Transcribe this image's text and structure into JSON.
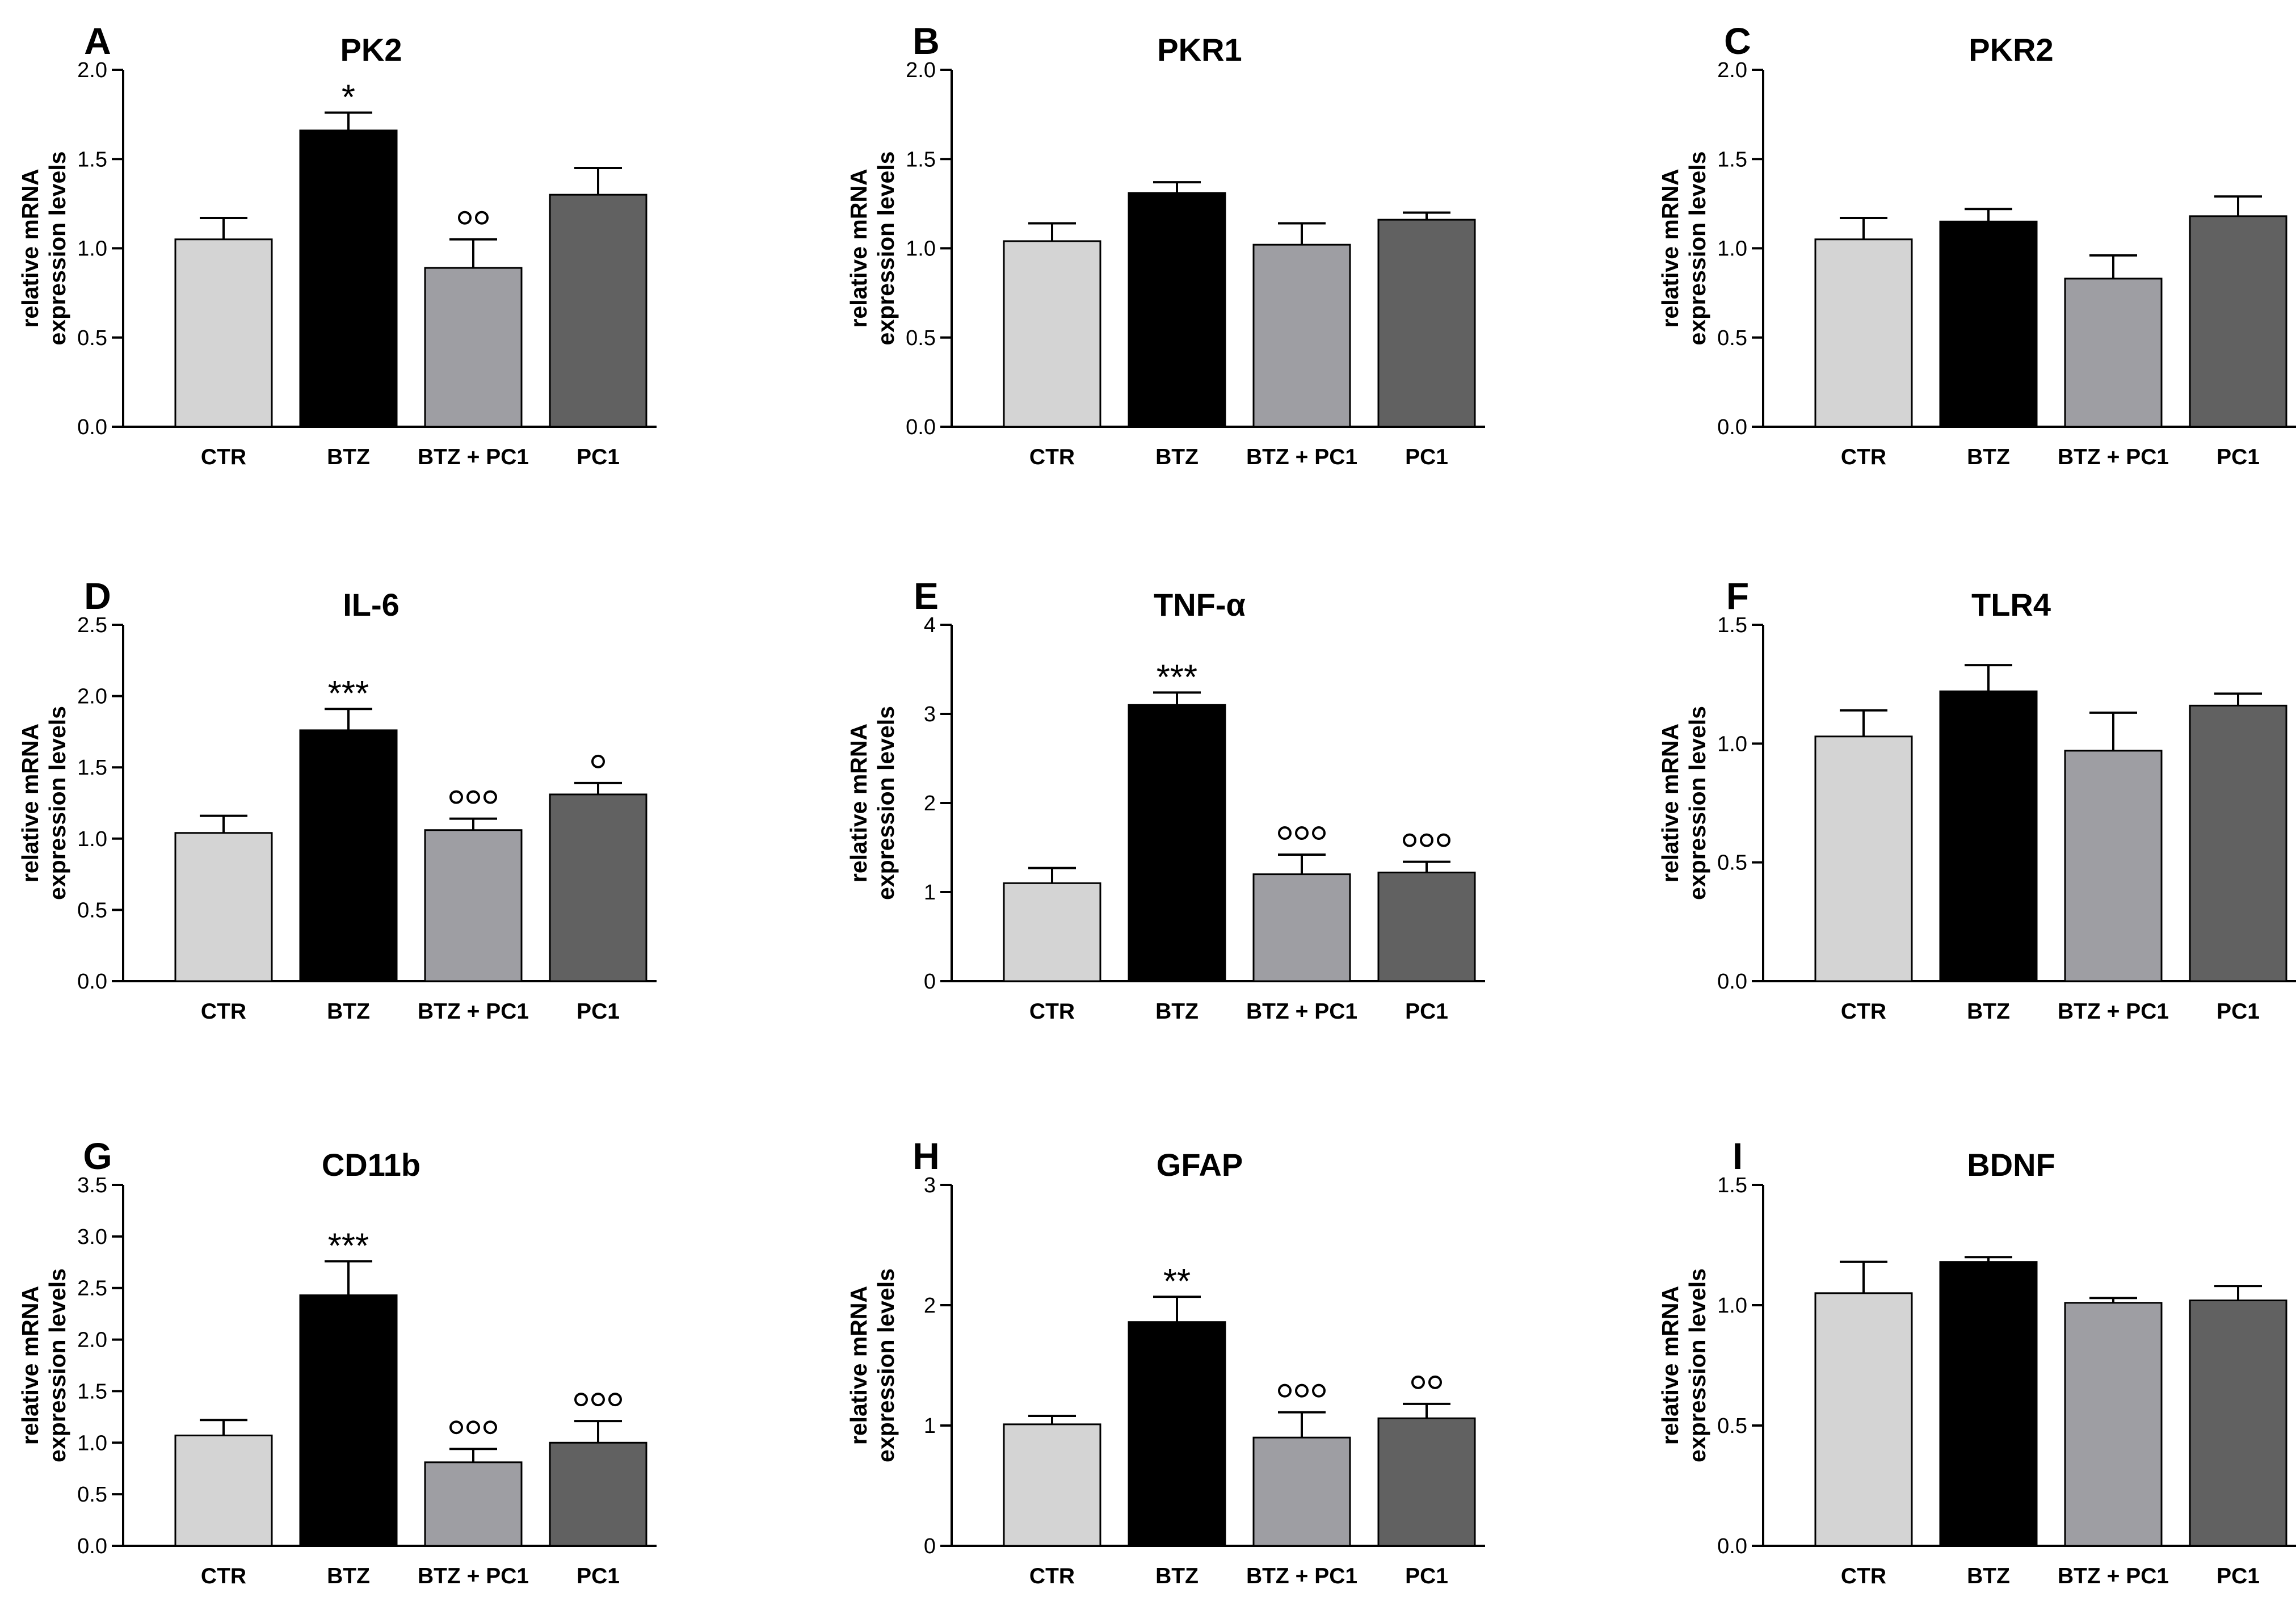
{
  "figure": {
    "ylabel_lines": [
      "relative mRNA",
      "expression levels"
    ]
  },
  "chart_data": [
    {
      "panel": "A",
      "title": "PK2",
      "type": "bar",
      "categories": [
        "CTR",
        "BTZ",
        "BTZ + PC1",
        "PC1"
      ],
      "values": [
        1.05,
        1.66,
        0.89,
        1.3
      ],
      "errors": [
        0.12,
        0.1,
        0.16,
        0.15
      ],
      "colors": [
        "#d4d4d4",
        "#000000",
        "#9e9ea3",
        "#616161"
      ],
      "ylim": [
        0,
        2.0
      ],
      "yticks": [
        0,
        0.5,
        1.0,
        1.5,
        2.0
      ],
      "tick_decimals": 1,
      "ylabel": "relative mRNA expression levels",
      "significance": [
        {
          "bar": 1,
          "symbol": "*"
        },
        {
          "bar": 2,
          "symbol": "°°"
        }
      ]
    },
    {
      "panel": "B",
      "title": "PKR1",
      "type": "bar",
      "categories": [
        "CTR",
        "BTZ",
        "BTZ + PC1",
        "PC1"
      ],
      "values": [
        1.04,
        1.31,
        1.02,
        1.16
      ],
      "errors": [
        0.1,
        0.06,
        0.12,
        0.04
      ],
      "colors": [
        "#d4d4d4",
        "#000000",
        "#9e9ea3",
        "#616161"
      ],
      "ylim": [
        0,
        2.0
      ],
      "yticks": [
        0,
        0.5,
        1.0,
        1.5,
        2.0
      ],
      "tick_decimals": 1,
      "ylabel": "relative mRNA expression levels",
      "significance": []
    },
    {
      "panel": "C",
      "title": "PKR2",
      "type": "bar",
      "categories": [
        "CTR",
        "BTZ",
        "BTZ + PC1",
        "PC1"
      ],
      "values": [
        1.05,
        1.15,
        0.83,
        1.18
      ],
      "errors": [
        0.12,
        0.07,
        0.13,
        0.11
      ],
      "colors": [
        "#d4d4d4",
        "#000000",
        "#9e9ea3",
        "#616161"
      ],
      "ylim": [
        0,
        2.0
      ],
      "yticks": [
        0,
        0.5,
        1.0,
        1.5,
        2.0
      ],
      "tick_decimals": 1,
      "ylabel": "relative mRNA expression levels",
      "significance": []
    },
    {
      "panel": "D",
      "title": "IL-6",
      "type": "bar",
      "categories": [
        "CTR",
        "BTZ",
        "BTZ + PC1",
        "PC1"
      ],
      "values": [
        1.04,
        1.76,
        1.06,
        1.31
      ],
      "errors": [
        0.12,
        0.15,
        0.08,
        0.08
      ],
      "colors": [
        "#d4d4d4",
        "#000000",
        "#9e9ea3",
        "#616161"
      ],
      "ylim": [
        0,
        2.5
      ],
      "yticks": [
        0,
        0.5,
        1.0,
        1.5,
        2.0,
        2.5
      ],
      "tick_decimals": 1,
      "ylabel": "relative mRNA expression levels",
      "significance": [
        {
          "bar": 1,
          "symbol": "***"
        },
        {
          "bar": 2,
          "symbol": "°°°"
        },
        {
          "bar": 3,
          "symbol": "°"
        }
      ]
    },
    {
      "panel": "E",
      "title": "TNF-α",
      "type": "bar",
      "categories": [
        "CTR",
        "BTZ",
        "BTZ + PC1",
        "PC1"
      ],
      "values": [
        1.1,
        3.1,
        1.2,
        1.22
      ],
      "errors": [
        0.17,
        0.14,
        0.22,
        0.12
      ],
      "colors": [
        "#d4d4d4",
        "#000000",
        "#9e9ea3",
        "#616161"
      ],
      "ylim": [
        0,
        4
      ],
      "yticks": [
        0,
        1,
        2,
        3,
        4
      ],
      "tick_decimals": 0,
      "ylabel": "relative mRNA expression levels",
      "significance": [
        {
          "bar": 1,
          "symbol": "***"
        },
        {
          "bar": 2,
          "symbol": "°°°"
        },
        {
          "bar": 3,
          "symbol": "°°°"
        }
      ]
    },
    {
      "panel": "F",
      "title": "TLR4",
      "type": "bar",
      "categories": [
        "CTR",
        "BTZ",
        "BTZ + PC1",
        "PC1"
      ],
      "values": [
        1.03,
        1.22,
        0.97,
        1.16
      ],
      "errors": [
        0.11,
        0.11,
        0.16,
        0.05
      ],
      "colors": [
        "#d4d4d4",
        "#000000",
        "#9e9ea3",
        "#616161"
      ],
      "ylim": [
        0,
        1.5
      ],
      "yticks": [
        0,
        0.5,
        1.0,
        1.5
      ],
      "tick_decimals": 1,
      "ylabel": "relative mRNA expression levels",
      "significance": []
    },
    {
      "panel": "G",
      "title": "CD11b",
      "type": "bar",
      "categories": [
        "CTR",
        "BTZ",
        "BTZ + PC1",
        "PC1"
      ],
      "values": [
        1.07,
        2.43,
        0.81,
        1.0
      ],
      "errors": [
        0.15,
        0.33,
        0.13,
        0.21
      ],
      "colors": [
        "#d4d4d4",
        "#000000",
        "#9e9ea3",
        "#616161"
      ],
      "ylim": [
        0,
        3.5
      ],
      "yticks": [
        0,
        0.5,
        1.0,
        1.5,
        2.0,
        2.5,
        3.0,
        3.5
      ],
      "tick_decimals": 1,
      "ylabel": "relative mRNA expression levels",
      "significance": [
        {
          "bar": 1,
          "symbol": "***"
        },
        {
          "bar": 2,
          "symbol": "°°°"
        },
        {
          "bar": 3,
          "symbol": "°°°"
        }
      ]
    },
    {
      "panel": "H",
      "title": "GFAP",
      "type": "bar",
      "categories": [
        "CTR",
        "BTZ",
        "BTZ + PC1",
        "PC1"
      ],
      "values": [
        1.01,
        1.86,
        0.9,
        1.06
      ],
      "errors": [
        0.07,
        0.21,
        0.21,
        0.12
      ],
      "colors": [
        "#d4d4d4",
        "#000000",
        "#9e9ea3",
        "#616161"
      ],
      "ylim": [
        0,
        3
      ],
      "yticks": [
        0,
        1,
        2,
        3
      ],
      "tick_decimals": 0,
      "ylabel": "relative mRNA expression levels",
      "significance": [
        {
          "bar": 1,
          "symbol": "**"
        },
        {
          "bar": 2,
          "symbol": "°°°"
        },
        {
          "bar": 3,
          "symbol": "°°"
        }
      ]
    },
    {
      "panel": "I",
      "title": "BDNF",
      "type": "bar",
      "categories": [
        "CTR",
        "BTZ",
        "BTZ + PC1",
        "PC1"
      ],
      "values": [
        1.05,
        1.18,
        1.01,
        1.02
      ],
      "errors": [
        0.13,
        0.02,
        0.02,
        0.06
      ],
      "colors": [
        "#d4d4d4",
        "#000000",
        "#9e9ea3",
        "#616161"
      ],
      "ylim": [
        0,
        1.5
      ],
      "yticks": [
        0,
        0.5,
        1.0,
        1.5
      ],
      "tick_decimals": 1,
      "ylabel": "relative mRNA expression levels",
      "significance": []
    }
  ]
}
